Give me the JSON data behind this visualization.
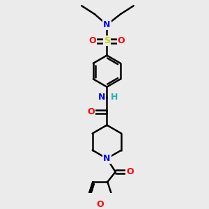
{
  "background_color": "#ebebeb",
  "atom_colors": {
    "C": "#000000",
    "N": "#0000ff",
    "O": "#ff0000",
    "S": "#cccc00",
    "H": "#20b2aa"
  },
  "bond_color": "#000000",
  "bond_width": 1.8,
  "figsize": [
    3.0,
    3.0
  ],
  "dpi": 100,
  "xlim": [
    -1.2,
    1.2
  ],
  "ylim": [
    -2.0,
    2.0
  ]
}
